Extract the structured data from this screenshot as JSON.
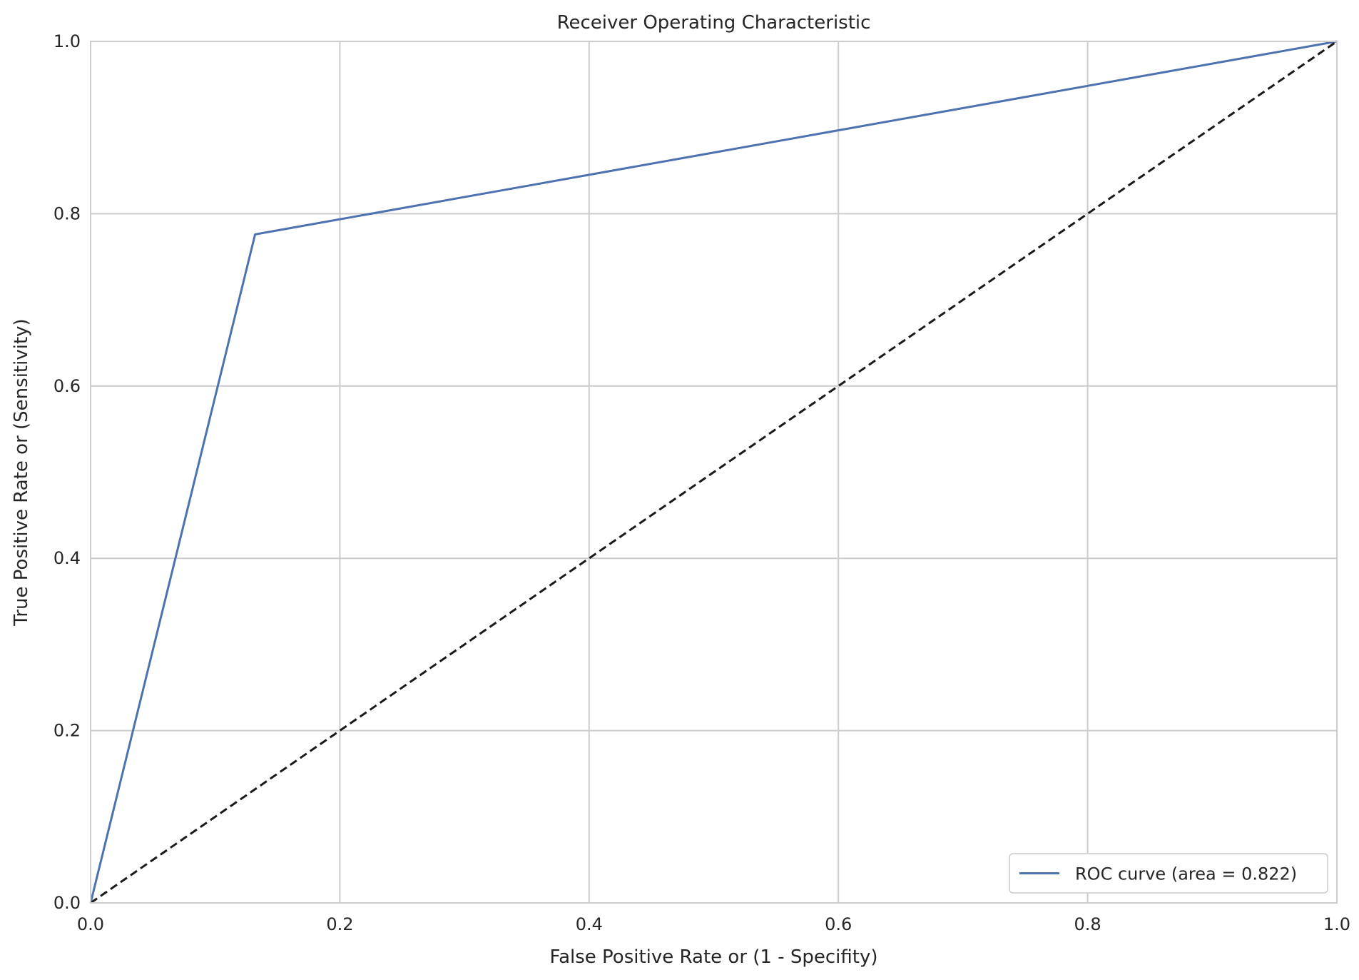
{
  "chart_data": {
    "type": "line",
    "title": "Receiver Operating Characteristic",
    "xlabel": "False Positive Rate or (1 - Specifity)",
    "ylabel": "True Positive Rate or (Sensitivity)",
    "xlim": [
      0.0,
      1.0
    ],
    "ylim": [
      0.0,
      1.0
    ],
    "xticks": [
      "0.0",
      "0.2",
      "0.4",
      "0.6",
      "0.8",
      "1.0"
    ],
    "yticks": [
      "0.0",
      "0.2",
      "0.4",
      "0.6",
      "0.8",
      "1.0"
    ],
    "grid": true,
    "legend_position": "lower-right",
    "series": [
      {
        "name": "ROC curve (area = 0.822)",
        "color": "#4c72b0",
        "style": "solid",
        "x": [
          0.0,
          0.132,
          1.0
        ],
        "y": [
          0.0,
          0.776,
          1.0
        ]
      },
      {
        "color": "#1a1a1a",
        "style": "dashed",
        "x": [
          0.0,
          1.0
        ],
        "y": [
          0.0,
          1.0
        ]
      }
    ]
  }
}
